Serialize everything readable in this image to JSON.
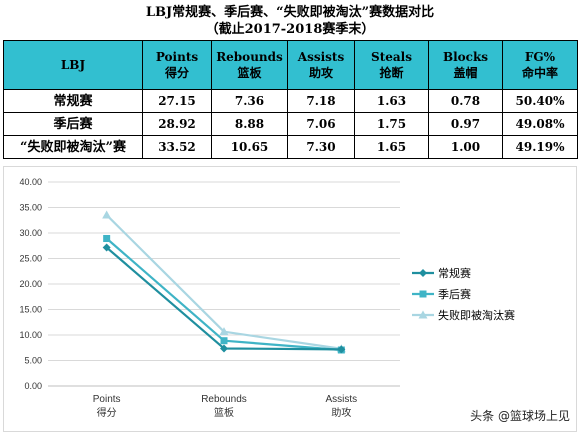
{
  "title": {
    "line1": "LBJ常规赛、季后赛、“失败即被淘汰”赛数据对比",
    "line2": "（截止2017-2018赛季末）"
  },
  "table": {
    "headers": [
      {
        "top": "LBJ",
        "bottom": ""
      },
      {
        "top": "Points",
        "bottom": "得分"
      },
      {
        "top": "Rebounds",
        "bottom": "篮板"
      },
      {
        "top": "Assists",
        "bottom": "助攻"
      },
      {
        "top": "Steals",
        "bottom": "抢断"
      },
      {
        "top": "Blocks",
        "bottom": "盖帽"
      },
      {
        "top": "FG%",
        "bottom": "命中率"
      }
    ],
    "rows": [
      {
        "label": "常规赛",
        "cells": [
          "27.15",
          "7.36",
          "7.18",
          "1.63",
          "0.78",
          "50.40%"
        ]
      },
      {
        "label": "季后赛",
        "cells": [
          "28.92",
          "8.88",
          "7.06",
          "1.75",
          "0.97",
          "49.08%"
        ]
      },
      {
        "label": "“失败即被淘汰”赛",
        "cells": [
          "33.52",
          "10.65",
          "7.30",
          "1.65",
          "1.00",
          "49.19%"
        ]
      }
    ]
  },
  "chart_data": {
    "type": "line",
    "categories": [
      {
        "en": "Points",
        "zh": "得分"
      },
      {
        "en": "Rebounds",
        "zh": "篮板"
      },
      {
        "en": "Assists",
        "zh": "助攻"
      }
    ],
    "series": [
      {
        "name": "常规赛",
        "values": [
          27.15,
          7.36,
          7.18
        ],
        "color": "#1f8f9f",
        "marker": "diamond"
      },
      {
        "name": "季后赛",
        "values": [
          28.92,
          8.88,
          7.06
        ],
        "color": "#3fb4c6",
        "marker": "square"
      },
      {
        "name": "失败即被淘汰赛",
        "values": [
          33.52,
          10.65,
          7.3
        ],
        "color": "#a9d6e2",
        "marker": "triangle"
      }
    ],
    "ylim": [
      0,
      40
    ],
    "yticks": [
      "0.00",
      "5.00",
      "10.00",
      "15.00",
      "20.00",
      "25.00",
      "30.00",
      "35.00",
      "40.00"
    ],
    "grid": true,
    "legend": "right"
  },
  "watermark": "头条 @篮球场上见"
}
